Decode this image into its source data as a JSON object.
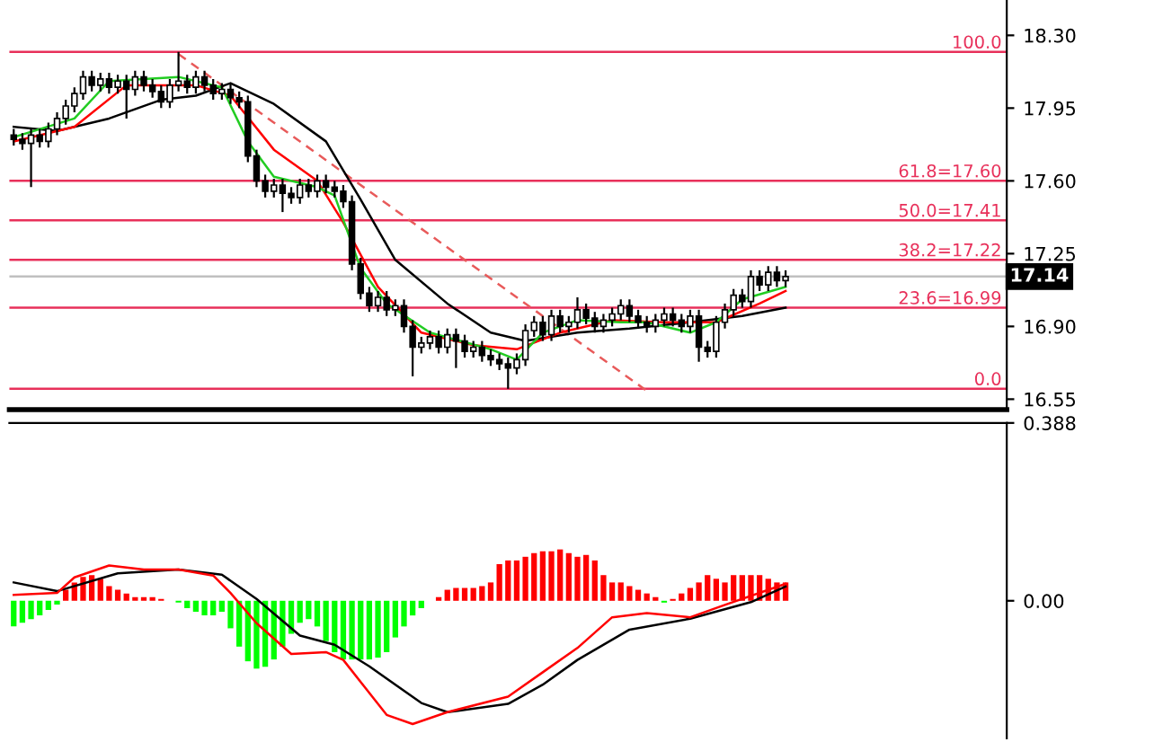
{
  "chart_data": [
    {
      "type": "candlestick",
      "categories": [
        null,
        null,
        null,
        null,
        null,
        null,
        null,
        null,
        null,
        null,
        null,
        null,
        null,
        null,
        null,
        null,
        null,
        null,
        null,
        null,
        null,
        null,
        null,
        null,
        null,
        null,
        null,
        null,
        null,
        null,
        null,
        null,
        null,
        null,
        null,
        null,
        null,
        null,
        null,
        null,
        null,
        null,
        null,
        null,
        null,
        null,
        null,
        null,
        null,
        null,
        null,
        null,
        null,
        null,
        null,
        null,
        null,
        null,
        null,
        null,
        null,
        null,
        null,
        null,
        null,
        null,
        null,
        null,
        null,
        null,
        null,
        null,
        null,
        null,
        null,
        null,
        null,
        null,
        null,
        null,
        null,
        null,
        null,
        null,
        null,
        null,
        null,
        null,
        null,
        null,
        null,
        null,
        null,
        null,
        null,
        null,
        null,
        null,
        null,
        null,
        null,
        null,
        null,
        null,
        null,
        null,
        null,
        null,
        null,
        null,
        null,
        null,
        null,
        null,
        null
      ],
      "ohlc": [
        [
          17.82,
          17.85,
          17.77,
          17.8
        ],
        [
          17.8,
          17.83,
          17.75,
          17.78
        ],
        [
          17.78,
          17.85,
          17.57,
          17.82
        ],
        [
          17.82,
          17.85,
          17.76,
          17.79
        ],
        [
          17.79,
          17.88,
          17.76,
          17.85
        ],
        [
          17.85,
          17.93,
          17.82,
          17.9
        ],
        [
          17.9,
          17.99,
          17.87,
          17.96
        ],
        [
          17.96,
          18.05,
          17.93,
          18.02
        ],
        [
          18.02,
          18.13,
          17.99,
          18.1
        ],
        [
          18.1,
          18.13,
          18.03,
          18.06
        ],
        [
          18.06,
          18.12,
          18.03,
          18.09
        ],
        [
          18.09,
          18.12,
          18.02,
          18.05
        ],
        [
          18.05,
          18.11,
          18.02,
          18.08
        ],
        [
          18.08,
          18.11,
          17.9,
          18.04
        ],
        [
          18.04,
          18.13,
          18.01,
          18.1
        ],
        [
          18.1,
          18.13,
          18.03,
          18.06
        ],
        [
          18.06,
          18.09,
          18.0,
          18.03
        ],
        [
          18.03,
          18.06,
          17.95,
          17.98
        ],
        [
          17.98,
          18.09,
          17.95,
          18.06
        ],
        [
          18.06,
          18.22,
          18.03,
          18.08
        ],
        [
          18.08,
          18.11,
          18.02,
          18.05
        ],
        [
          18.05,
          18.13,
          18.02,
          18.1
        ],
        [
          18.1,
          18.13,
          18.03,
          18.06
        ],
        [
          18.06,
          18.09,
          17.99,
          18.02
        ],
        [
          18.02,
          18.07,
          17.99,
          18.04
        ],
        [
          18.04,
          18.07,
          17.97,
          18.0
        ],
        [
          18.0,
          18.03,
          17.95,
          17.98
        ],
        [
          17.98,
          18.01,
          17.69,
          17.72
        ],
        [
          17.72,
          17.75,
          17.57,
          17.6
        ],
        [
          17.6,
          17.63,
          17.52,
          17.55
        ],
        [
          17.55,
          17.61,
          17.52,
          17.58
        ],
        [
          17.58,
          17.61,
          17.45,
          17.54
        ],
        [
          17.54,
          17.57,
          17.49,
          17.52
        ],
        [
          17.52,
          17.61,
          17.49,
          17.58
        ],
        [
          17.58,
          17.61,
          17.52,
          17.55
        ],
        [
          17.55,
          17.63,
          17.52,
          17.6
        ],
        [
          17.6,
          17.63,
          17.54,
          17.57
        ],
        [
          17.57,
          17.6,
          17.52,
          17.55
        ],
        [
          17.55,
          17.58,
          17.47,
          17.5
        ],
        [
          17.5,
          17.53,
          17.17,
          17.2
        ],
        [
          17.2,
          17.23,
          17.03,
          17.06
        ],
        [
          17.06,
          17.09,
          16.97,
          17.0
        ],
        [
          17.0,
          17.07,
          16.97,
          17.04
        ],
        [
          17.04,
          17.07,
          16.95,
          16.98
        ],
        [
          16.98,
          17.03,
          16.95,
          17.0
        ],
        [
          17.0,
          17.03,
          16.87,
          16.9
        ],
        [
          16.9,
          16.93,
          16.66,
          16.8
        ],
        [
          16.8,
          16.85,
          16.77,
          16.82
        ],
        [
          16.82,
          16.88,
          16.79,
          16.85
        ],
        [
          16.85,
          16.88,
          16.77,
          16.8
        ],
        [
          16.8,
          16.89,
          16.77,
          16.86
        ],
        [
          16.86,
          16.89,
          16.7,
          16.83
        ],
        [
          16.83,
          16.86,
          16.75,
          16.78
        ],
        [
          16.78,
          16.83,
          16.75,
          16.8
        ],
        [
          16.8,
          16.83,
          16.73,
          16.76
        ],
        [
          16.76,
          16.79,
          16.71,
          16.74
        ],
        [
          16.74,
          16.77,
          16.69,
          16.72
        ],
        [
          16.72,
          16.75,
          16.6,
          16.7
        ],
        [
          16.7,
          16.77,
          16.67,
          16.74
        ],
        [
          16.74,
          16.91,
          16.71,
          16.88
        ],
        [
          16.88,
          16.95,
          16.85,
          16.92
        ],
        [
          16.92,
          16.95,
          16.83,
          16.86
        ],
        [
          16.86,
          16.98,
          16.83,
          16.95
        ],
        [
          16.95,
          16.98,
          16.87,
          16.9
        ],
        [
          16.9,
          16.95,
          16.87,
          16.92
        ],
        [
          16.92,
          17.04,
          16.89,
          16.98
        ],
        [
          16.98,
          17.01,
          16.91,
          16.94
        ],
        [
          16.94,
          16.97,
          16.87,
          16.9
        ],
        [
          16.9,
          16.96,
          16.87,
          16.93
        ],
        [
          16.93,
          16.99,
          16.9,
          16.96
        ],
        [
          16.96,
          17.03,
          16.93,
          17.0
        ],
        [
          17.0,
          17.03,
          16.92,
          16.95
        ],
        [
          16.95,
          16.98,
          16.89,
          16.92
        ],
        [
          16.92,
          16.95,
          16.87,
          16.9
        ],
        [
          16.9,
          16.96,
          16.87,
          16.93
        ],
        [
          16.93,
          16.99,
          16.9,
          16.96
        ],
        [
          16.96,
          16.99,
          16.9,
          16.93
        ],
        [
          16.93,
          16.96,
          16.87,
          16.9
        ],
        [
          16.9,
          16.98,
          16.87,
          16.95
        ],
        [
          16.95,
          16.98,
          16.73,
          16.8
        ],
        [
          16.8,
          16.83,
          16.75,
          16.78
        ],
        [
          16.78,
          16.95,
          16.75,
          16.92
        ],
        [
          16.92,
          17.01,
          16.89,
          16.98
        ],
        [
          16.98,
          17.08,
          16.95,
          17.05
        ],
        [
          17.05,
          17.08,
          16.99,
          17.02
        ],
        [
          17.02,
          17.17,
          16.99,
          17.14
        ],
        [
          17.14,
          17.17,
          17.07,
          17.1
        ],
        [
          17.1,
          17.19,
          17.07,
          17.16
        ],
        [
          17.16,
          17.19,
          17.09,
          17.12
        ],
        [
          17.12,
          17.17,
          17.09,
          17.14
        ],
        null,
        null,
        null,
        null,
        null,
        null,
        null,
        null,
        null,
        null,
        null,
        null,
        null,
        null,
        null,
        null,
        null,
        null,
        null,
        null,
        null,
        null,
        null,
        null,
        null
      ],
      "series": [
        {
          "type": "line",
          "color": "#e85a5a",
          "line_style": "dashed",
          "values": [
            null,
            null,
            null,
            null,
            null,
            null,
            null,
            null,
            null,
            null,
            null,
            null,
            null,
            null,
            null,
            null,
            null,
            null,
            null,
            18.21,
            null,
            null,
            null,
            null,
            null,
            null,
            null,
            null,
            null,
            null,
            null,
            null,
            null,
            null,
            null,
            null,
            null,
            null,
            null,
            null,
            null,
            null,
            null,
            null,
            null,
            null,
            null,
            null,
            null,
            null,
            null,
            null,
            null,
            null,
            null,
            null,
            null,
            null,
            null,
            null,
            null,
            null,
            null,
            null,
            null,
            null,
            null,
            null,
            null,
            null,
            null,
            null,
            null,
            16.59,
            null,
            null,
            null,
            null,
            null,
            null,
            null,
            null,
            null,
            null,
            null,
            null,
            null,
            null,
            null,
            null,
            null,
            null,
            null,
            null,
            null,
            null,
            null,
            null,
            null,
            null,
            null,
            null,
            null,
            null,
            null,
            null,
            null,
            null,
            null,
            null,
            null,
            null,
            null,
            null,
            null
          ]
        },
        {
          "type": "line",
          "color": "#000000",
          "values": [
            17.86,
            null,
            null,
            null,
            null,
            17.84,
            null,
            null,
            null,
            null,
            null,
            17.9,
            null,
            null,
            null,
            null,
            null,
            17.99,
            null,
            null,
            null,
            18.01,
            null,
            null,
            null,
            18.07,
            null,
            null,
            null,
            null,
            17.97,
            null,
            null,
            null,
            null,
            null,
            17.79,
            null,
            null,
            null,
            17.51,
            null,
            null,
            null,
            17.22,
            null,
            null,
            null,
            null,
            null,
            17.01,
            null,
            null,
            null,
            null,
            16.87,
            null,
            null,
            null,
            16.83,
            null,
            null,
            null,
            null,
            null,
            16.87,
            null,
            null,
            null,
            null,
            null,
            16.89,
            null,
            null,
            null,
            null,
            null,
            null,
            16.92,
            null,
            null,
            null,
            null,
            null,
            16.95,
            null,
            null,
            null,
            null,
            16.99,
            null,
            null,
            null,
            null,
            null,
            null,
            null,
            null,
            null,
            null,
            null,
            null,
            null,
            null,
            null,
            null,
            null,
            null,
            null,
            null,
            null,
            null,
            null,
            null,
            null
          ]
        },
        {
          "type": "line",
          "color": "#ff0000",
          "values": [
            17.79,
            null,
            null,
            null,
            null,
            null,
            null,
            17.86,
            null,
            null,
            null,
            null,
            null,
            18.06,
            null,
            null,
            null,
            null,
            null,
            null,
            null,
            18.06,
            null,
            null,
            null,
            18.01,
            null,
            null,
            null,
            null,
            17.75,
            null,
            null,
            null,
            null,
            17.6,
            null,
            null,
            17.4,
            null,
            null,
            null,
            17.09,
            null,
            null,
            null,
            null,
            16.87,
            null,
            null,
            null,
            null,
            null,
            16.81,
            null,
            null,
            null,
            null,
            16.79,
            null,
            null,
            null,
            null,
            16.87,
            null,
            null,
            null,
            null,
            null,
            16.93,
            null,
            null,
            null,
            null,
            null,
            16.92,
            null,
            null,
            null,
            null,
            null,
            16.92,
            null,
            null,
            null,
            null,
            17.01,
            null,
            null,
            17.07,
            null,
            null,
            null,
            null,
            null,
            null,
            null,
            null,
            null,
            null,
            null,
            null,
            null,
            null,
            null,
            null,
            null,
            null,
            null,
            null,
            null,
            null,
            null,
            null,
            null
          ]
        },
        {
          "type": "line",
          "color": "#22cc22",
          "values": [
            17.81,
            null,
            null,
            null,
            null,
            null,
            null,
            17.9,
            null,
            null,
            null,
            18.08,
            null,
            null,
            null,
            null,
            null,
            null,
            null,
            18.1,
            null,
            null,
            null,
            null,
            18.05,
            null,
            null,
            17.79,
            null,
            null,
            17.62,
            null,
            null,
            null,
            null,
            17.57,
            null,
            17.53,
            null,
            null,
            17.18,
            null,
            null,
            17.01,
            null,
            null,
            null,
            null,
            16.87,
            null,
            null,
            null,
            null,
            null,
            null,
            16.79,
            null,
            null,
            16.74,
            null,
            null,
            16.87,
            null,
            null,
            null,
            16.93,
            null,
            null,
            null,
            null,
            16.92,
            null,
            null,
            16.92,
            null,
            null,
            null,
            null,
            16.87,
            null,
            null,
            16.92,
            null,
            null,
            17.03,
            null,
            null,
            null,
            null,
            17.09,
            null,
            null,
            null,
            null,
            null,
            null,
            null,
            null,
            null,
            null,
            null,
            null,
            null,
            null,
            null,
            null,
            null,
            null,
            null,
            null,
            null,
            null,
            null,
            null,
            null
          ]
        }
      ],
      "ref_lines": [
        {
          "axis": "y",
          "value": 18.22,
          "color": "#e8305a"
        },
        {
          "axis": "y",
          "value": 17.6,
          "color": "#e8305a"
        },
        {
          "axis": "y",
          "value": 17.41,
          "color": "#e8305a"
        },
        {
          "axis": "y",
          "value": 17.22,
          "color": "#e8305a"
        },
        {
          "axis": "y",
          "value": 16.99,
          "color": "#e8305a"
        },
        {
          "axis": "y",
          "value": 16.6,
          "color": "#e8305a"
        },
        {
          "axis": "y",
          "value": 17.14,
          "label": "17.14",
          "color": "#c0c0c0"
        }
      ],
      "annotations": [
        {
          "text": "100.0",
          "y": 18.22
        },
        {
          "text": "61.8=17.60",
          "y": 17.6
        },
        {
          "text": "50.0=17.41",
          "y": 17.41
        },
        {
          "text": "38.2=17.22",
          "y": 17.22
        },
        {
          "text": "23.6=16.99",
          "y": 16.99
        },
        {
          "text": "0.0",
          "y": 16.6
        }
      ],
      "ylim": [
        16.5,
        18.47
      ],
      "yticks": [
        {
          "value": 16.55,
          "label": "16.55"
        },
        {
          "value": 16.9,
          "label": "16.90"
        },
        {
          "value": 17.25,
          "label": "17.25"
        },
        {
          "value": 17.6,
          "label": "17.60"
        },
        {
          "value": 17.95,
          "label": "17.95"
        },
        {
          "value": 18.3,
          "label": "18.30"
        }
      ],
      "tick_labels": "y"
    },
    {
      "type": "bar",
      "categories": [
        null,
        null,
        null,
        null,
        null,
        null,
        null,
        null,
        null,
        null,
        null,
        null,
        null,
        null,
        null,
        null,
        null,
        null,
        null,
        null,
        null,
        null,
        null,
        null,
        null,
        null,
        null,
        null,
        null,
        null,
        null,
        null,
        null,
        null,
        null,
        null,
        null,
        null,
        null,
        null,
        null,
        null,
        null,
        null,
        null,
        null,
        null,
        null,
        null,
        null,
        null,
        null,
        null,
        null,
        null,
        null,
        null,
        null,
        null,
        null,
        null,
        null,
        null,
        null,
        null,
        null,
        null,
        null,
        null,
        null,
        null,
        null,
        null,
        null,
        null,
        null,
        null,
        null,
        null,
        null,
        null,
        null,
        null,
        null,
        null,
        null,
        null,
        null,
        null,
        null,
        null,
        null,
        null,
        null,
        null,
        null,
        null,
        null,
        null,
        null,
        null,
        null,
        null,
        null,
        null,
        null,
        null,
        null,
        null,
        null,
        null,
        null,
        null,
        null,
        null
      ],
      "series": [
        {
          "color": "#ff0000",
          "values": [
            null,
            null,
            null,
            null,
            null,
            null,
            0.024,
            0.04,
            0.052,
            0.056,
            0.048,
            0.032,
            0.024,
            0.016,
            0.008,
            0.008,
            0.008,
            0.004,
            null,
            null,
            null,
            null,
            null,
            null,
            null,
            null,
            null,
            null,
            null,
            null,
            null,
            null,
            null,
            null,
            null,
            null,
            null,
            null,
            null,
            null,
            null,
            null,
            null,
            null,
            null,
            null,
            null,
            null,
            null,
            0.008,
            0.024,
            0.028,
            0.028,
            0.028,
            0.032,
            0.04,
            0.08,
            0.088,
            0.088,
            0.096,
            0.104,
            0.108,
            0.108,
            0.112,
            0.104,
            0.096,
            0.1,
            0.088,
            0.056,
            0.04,
            0.04,
            0.032,
            0.024,
            0.016,
            0.008,
            null,
            0.004,
            0.016,
            0.028,
            0.04,
            0.056,
            0.048,
            0.04,
            0.056,
            0.056,
            0.056,
            0.056,
            0.048,
            0.04,
            0.04,
            null,
            null,
            null,
            null,
            null,
            null,
            null,
            null,
            null,
            null,
            null,
            null,
            null,
            null,
            null,
            null,
            null,
            null,
            null,
            null,
            null,
            null,
            null,
            null,
            null
          ]
        },
        {
          "color": "#00ff00",
          "values": [
            -0.056,
            -0.048,
            -0.04,
            -0.032,
            -0.02,
            -0.008,
            null,
            null,
            null,
            null,
            null,
            null,
            null,
            null,
            null,
            null,
            null,
            null,
            null,
            -0.004,
            -0.016,
            -0.024,
            -0.032,
            -0.032,
            -0.024,
            -0.06,
            -0.1,
            -0.132,
            -0.148,
            -0.144,
            -0.128,
            -0.1,
            -0.072,
            -0.048,
            -0.04,
            -0.056,
            -0.088,
            -0.112,
            -0.128,
            -0.128,
            -0.128,
            -0.128,
            -0.124,
            -0.112,
            -0.08,
            -0.056,
            -0.032,
            -0.016,
            null,
            null,
            null,
            null,
            null,
            null,
            null,
            null,
            null,
            null,
            null,
            null,
            null,
            null,
            null,
            null,
            null,
            null,
            null,
            null,
            null,
            null,
            null,
            null,
            null,
            null,
            null,
            -0.004,
            null,
            null,
            null,
            null,
            null,
            null,
            null,
            null,
            null,
            null,
            null,
            null,
            null,
            null,
            null,
            null,
            null,
            null,
            null,
            null,
            null,
            null,
            null,
            null,
            null,
            null,
            null,
            null,
            null,
            null,
            null,
            null,
            null,
            null,
            null,
            null,
            null,
            null,
            null
          ]
        },
        {
          "type": "line",
          "color": "#000000",
          "values": [
            0.04,
            null,
            null,
            null,
            null,
            0.021,
            null,
            null,
            null,
            null,
            null,
            null,
            0.06,
            null,
            null,
            null,
            null,
            null,
            null,
            0.068,
            null,
            null,
            null,
            null,
            0.057,
            null,
            null,
            null,
            0.004,
            null,
            null,
            null,
            null,
            -0.076,
            null,
            null,
            null,
            -0.096,
            null,
            null,
            null,
            -0.143,
            null,
            null,
            null,
            null,
            null,
            -0.223,
            null,
            null,
            -0.243,
            null,
            null,
            null,
            null,
            null,
            null,
            -0.225,
            null,
            null,
            null,
            -0.183,
            null,
            null,
            null,
            -0.129,
            null,
            null,
            null,
            null,
            null,
            -0.063,
            null,
            null,
            null,
            null,
            null,
            null,
            -0.039,
            null,
            null,
            null,
            null,
            null,
            null,
            -0.003,
            null,
            null,
            null,
            0.031,
            null,
            null,
            null,
            null,
            null,
            null,
            null,
            null,
            null,
            null,
            null,
            null,
            null,
            null,
            null,
            null,
            null,
            null,
            null,
            null,
            null,
            null,
            null,
            null,
            null
          ]
        },
        {
          "type": "line",
          "color": "#ff0000",
          "values": [
            0.013,
            null,
            null,
            null,
            null,
            0.017,
            null,
            0.051,
            null,
            null,
            null,
            0.077,
            null,
            null,
            null,
            0.068,
            null,
            null,
            null,
            0.068,
            null,
            null,
            null,
            0.055,
            null,
            0.017,
            null,
            null,
            -0.049,
            null,
            null,
            null,
            -0.116,
            null,
            null,
            null,
            -0.112,
            null,
            -0.129,
            null,
            null,
            null,
            null,
            -0.249,
            null,
            null,
            -0.269,
            null,
            null,
            null,
            -0.243,
            null,
            null,
            null,
            null,
            null,
            null,
            -0.209,
            null,
            null,
            null,
            -0.156,
            null,
            null,
            null,
            -0.103,
            null,
            null,
            null,
            -0.036,
            null,
            null,
            null,
            -0.027,
            null,
            null,
            null,
            null,
            -0.036,
            null,
            null,
            null,
            -0.009,
            null,
            null,
            null,
            null,
            null,
            null,
            0.037,
            null,
            null,
            null,
            null,
            null,
            null,
            null,
            null,
            null,
            null,
            null,
            null,
            null,
            null,
            null,
            null,
            null,
            null,
            null,
            null,
            null,
            null,
            null,
            null,
            null
          ]
        }
      ],
      "ylim": [
        -0.3,
        0.388
      ],
      "yticks": [
        {
          "value": 0.388,
          "label": "0.388"
        },
        {
          "value": 0,
          "label": "0.00"
        }
      ],
      "tick_labels": "y"
    }
  ]
}
